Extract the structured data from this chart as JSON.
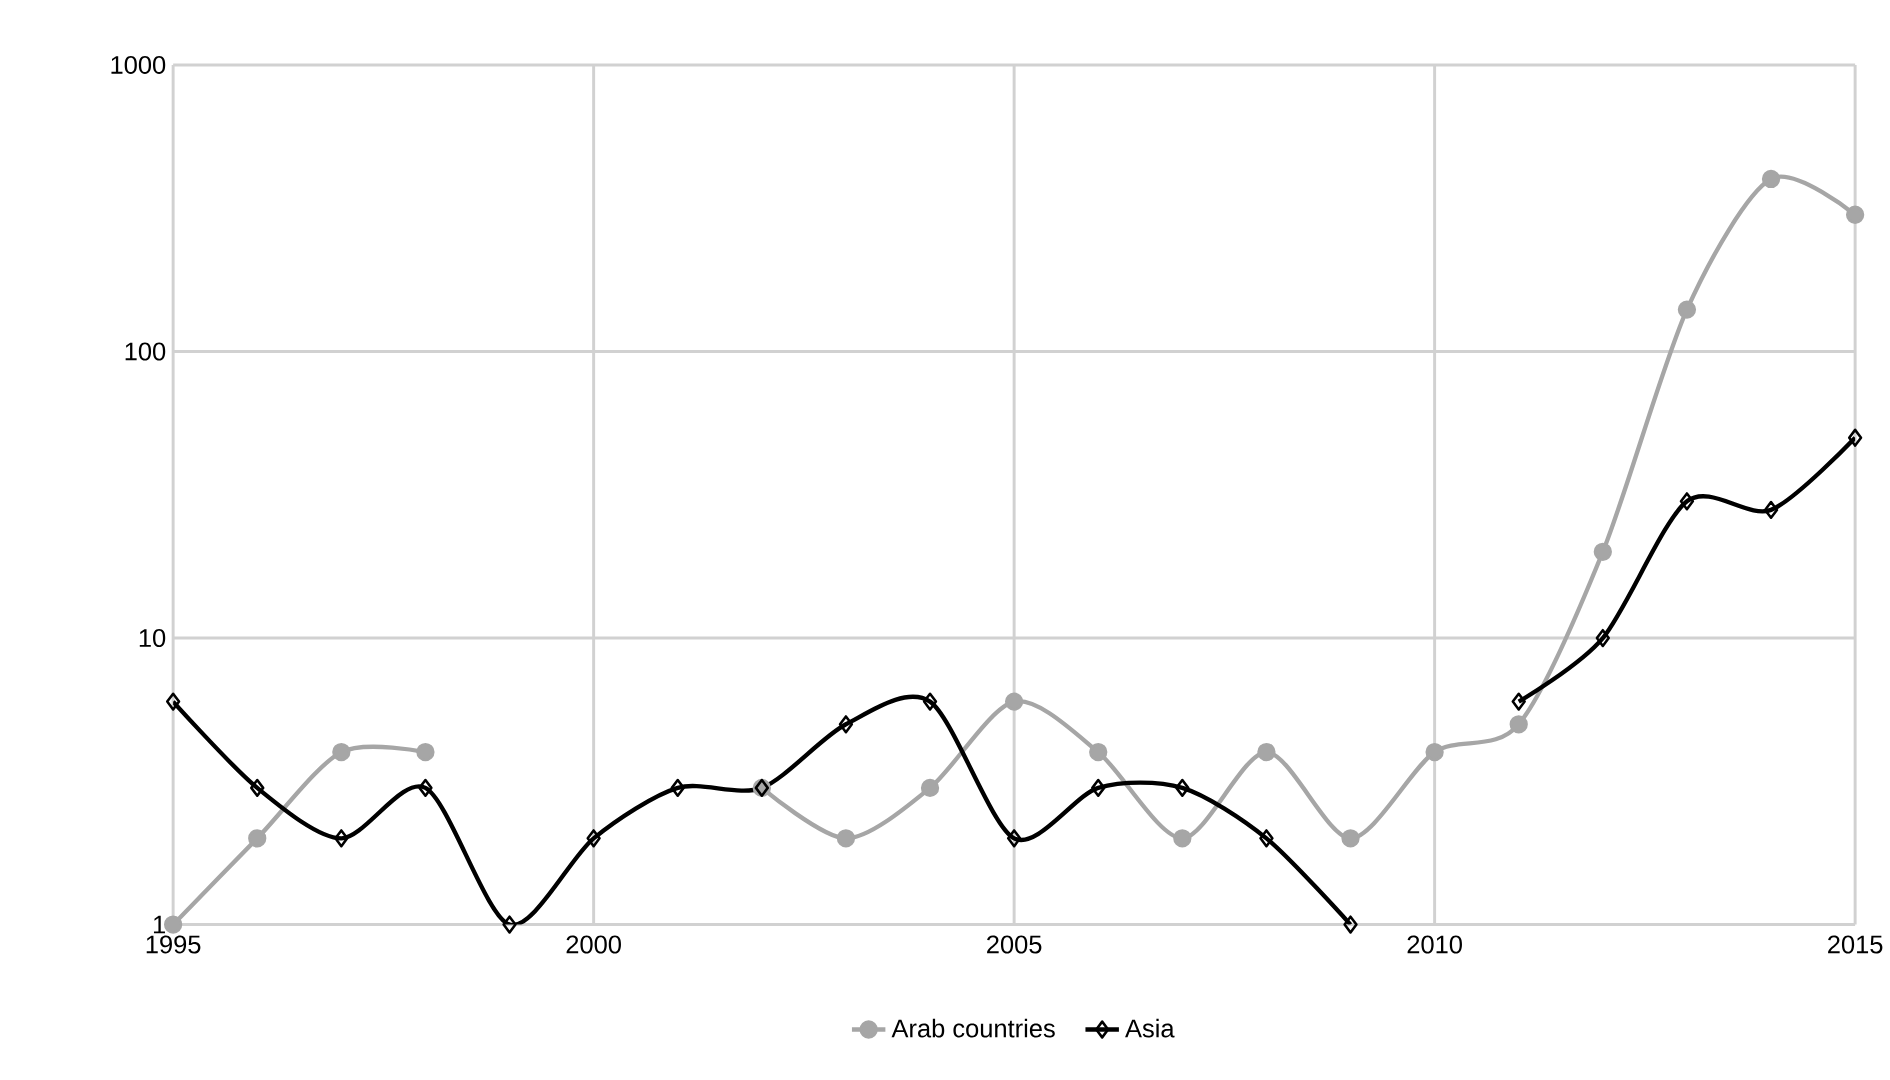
{
  "chart_data": {
    "type": "line",
    "x": [
      1995,
      1996,
      1997,
      1998,
      1999,
      2000,
      2001,
      2002,
      2003,
      2004,
      2005,
      2006,
      2007,
      2008,
      2009,
      2010,
      2011,
      2012,
      2013,
      2014,
      2015
    ],
    "series": [
      {
        "name": "Arab countries",
        "color": "#a6a6a6",
        "marker": "circle",
        "values": [
          1,
          2,
          4,
          4,
          null,
          null,
          null,
          3,
          2,
          3,
          6,
          4,
          2,
          4,
          2,
          4,
          5,
          20,
          140,
          400,
          300
        ]
      },
      {
        "name": "Asia",
        "color": "#000000",
        "marker": "diamond",
        "values": [
          6,
          3,
          2,
          3,
          1,
          2,
          3,
          3,
          5,
          6,
          2,
          3,
          3,
          2,
          1,
          null,
          6,
          10,
          30,
          28,
          50
        ]
      }
    ],
    "log": true,
    "xlim": [
      1995,
      2015
    ],
    "ylim": [
      1,
      1000
    ],
    "xticks": [
      1995,
      2000,
      2005,
      2010,
      2015
    ],
    "yticks": [
      1,
      10,
      100,
      1000
    ],
    "grid": true,
    "legend": "bottom"
  }
}
